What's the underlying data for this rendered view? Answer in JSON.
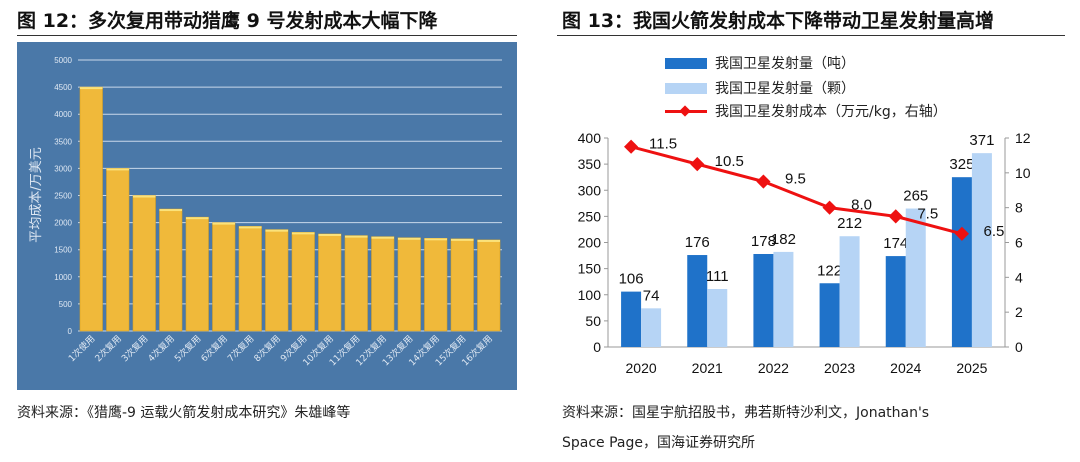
{
  "left": {
    "title": "图 12：多次复用带动猎鹰 9 号发射成本大幅下降",
    "source": "资料来源：《猎鹰-9 运载火箭发射成本研究》朱雄峰等"
  },
  "right": {
    "title": "图 13：我国火箭发射成本下降带动卫星发射量高增",
    "source_line1": "资料来源：国星宇航招股书，弗若斯特沙利文，Jonathan's",
    "source_line2": "Space Page，国海证券研究所"
  },
  "chart_data": [
    {
      "type": "bar",
      "ylabel": "平均成本/万美元",
      "ylim": [
        0,
        5000
      ],
      "yticks": [
        "0",
        "500",
        "1000",
        "1500",
        "2000",
        "2500",
        "3000",
        "3500",
        "4000",
        "4500",
        "5000"
      ],
      "categories": [
        "1次使用",
        "2次复用",
        "3次复用",
        "4次复用",
        "5次复用",
        "6次复用",
        "7次复用",
        "8次复用",
        "9次复用",
        "10次复用",
        "11次复用",
        "12次复用",
        "13次复用",
        "14次复用",
        "15次复用",
        "16次复用"
      ],
      "values": [
        4500,
        3000,
        2500,
        2250,
        2100,
        2000,
        1930,
        1870,
        1820,
        1790,
        1760,
        1740,
        1720,
        1710,
        1700,
        1680
      ],
      "bar_color": "#f0b93a",
      "bg_color": "#4a78a8",
      "grid": true
    },
    {
      "type": "bar+line",
      "categories": [
        "2020",
        "2021",
        "2022",
        "2023",
        "2024",
        "2025"
      ],
      "ylim": [
        0,
        400
      ],
      "yticks": [
        "0",
        "50",
        "100",
        "150",
        "200",
        "250",
        "300",
        "350",
        "400"
      ],
      "y2lim": [
        0,
        12
      ],
      "y2ticks": [
        "0",
        "2",
        "4",
        "6",
        "8",
        "10",
        "12"
      ],
      "series": [
        {
          "name": "我国卫星发射量（吨）",
          "type": "bar",
          "color": "#1f72c9",
          "values": [
            106,
            176,
            178,
            122,
            174,
            325
          ]
        },
        {
          "name": "我国卫星发射量（颗）",
          "type": "bar",
          "color": "#b6d4f5",
          "values": [
            74,
            111,
            182,
            212,
            265,
            371
          ]
        },
        {
          "name": "我国卫星发射成本（万元/kg，右轴）",
          "type": "line",
          "axis": "right",
          "color": "#ee1111",
          "values": [
            11.5,
            10.5,
            9.5,
            8.0,
            7.5,
            6.5
          ]
        }
      ],
      "legend": "top"
    }
  ]
}
